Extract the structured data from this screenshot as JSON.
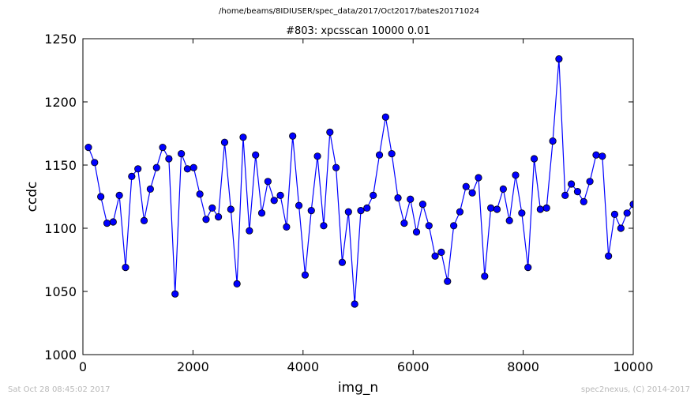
{
  "header": {
    "path": "/home/beams/8IDIUSER/spec_data/2017/Oct2017/bates20171024"
  },
  "footer": {
    "timestamp": "Sat Oct 28 08:45:02 2017",
    "credit": "spec2nexus, (C) 2014-2017"
  },
  "chart_data": {
    "type": "line",
    "title": "#803: xpcsscan 10000 0.01",
    "xlabel": "img_n",
    "ylabel": "ccdc",
    "xlim": [
      0,
      10000
    ],
    "ylim": [
      1000,
      1250
    ],
    "xticks": [
      0,
      2000,
      4000,
      6000,
      8000,
      10000
    ],
    "yticks": [
      1000,
      1050,
      1100,
      1150,
      1200,
      1250
    ],
    "grid": false,
    "line_color": "#0000ff",
    "marker_color": "#0000ff",
    "series": [
      {
        "x": [
          100,
          212,
          325,
          438,
          550,
          662,
          775,
          887,
          1000,
          1112,
          1225,
          1338,
          1450,
          1562,
          1675,
          1788,
          1900,
          2012,
          2125,
          2238,
          2350,
          2462,
          2575,
          2688,
          2800,
          2912,
          3025,
          3138,
          3250,
          3362,
          3475,
          3588,
          3700,
          3812,
          3925,
          4038,
          4150,
          4262,
          4375,
          4488,
          4600,
          4712,
          4825,
          4938,
          5050,
          5162,
          5275,
          5388,
          5500,
          5612,
          5725,
          5838,
          5950,
          6062,
          6175,
          6288,
          6400,
          6512,
          6625,
          6738,
          6850,
          6962,
          7075,
          7188,
          7300,
          7412,
          7525,
          7638,
          7750,
          7862,
          7975,
          8088,
          8200,
          8312,
          8425,
          8538,
          8650,
          8762,
          8875,
          8988,
          9100,
          9212,
          9325,
          9438,
          9550,
          9662,
          9775,
          9888,
          10000
        ],
        "y": [
          1164,
          1152,
          1125,
          1104,
          1105,
          1126,
          1069,
          1141,
          1147,
          1106,
          1131,
          1148,
          1164,
          1155,
          1048,
          1159,
          1147,
          1148,
          1127,
          1107,
          1116,
          1109,
          1168,
          1115,
          1056,
          1172,
          1098,
          1158,
          1112,
          1137,
          1122,
          1126,
          1101,
          1173,
          1118,
          1063,
          1114,
          1157,
          1102,
          1176,
          1148,
          1073,
          1113,
          1040,
          1114,
          1116,
          1126,
          1158,
          1188,
          1159,
          1124,
          1104,
          1123,
          1097,
          1119,
          1102,
          1078,
          1081,
          1058,
          1102,
          1113,
          1133,
          1128,
          1140,
          1062,
          1116,
          1115,
          1131,
          1106,
          1142,
          1112,
          1069,
          1155,
          1115,
          1116,
          1169,
          1234,
          1126,
          1135,
          1129,
          1121,
          1137,
          1158,
          1157,
          1078,
          1111,
          1100,
          1112,
          1119
        ]
      }
    ]
  }
}
